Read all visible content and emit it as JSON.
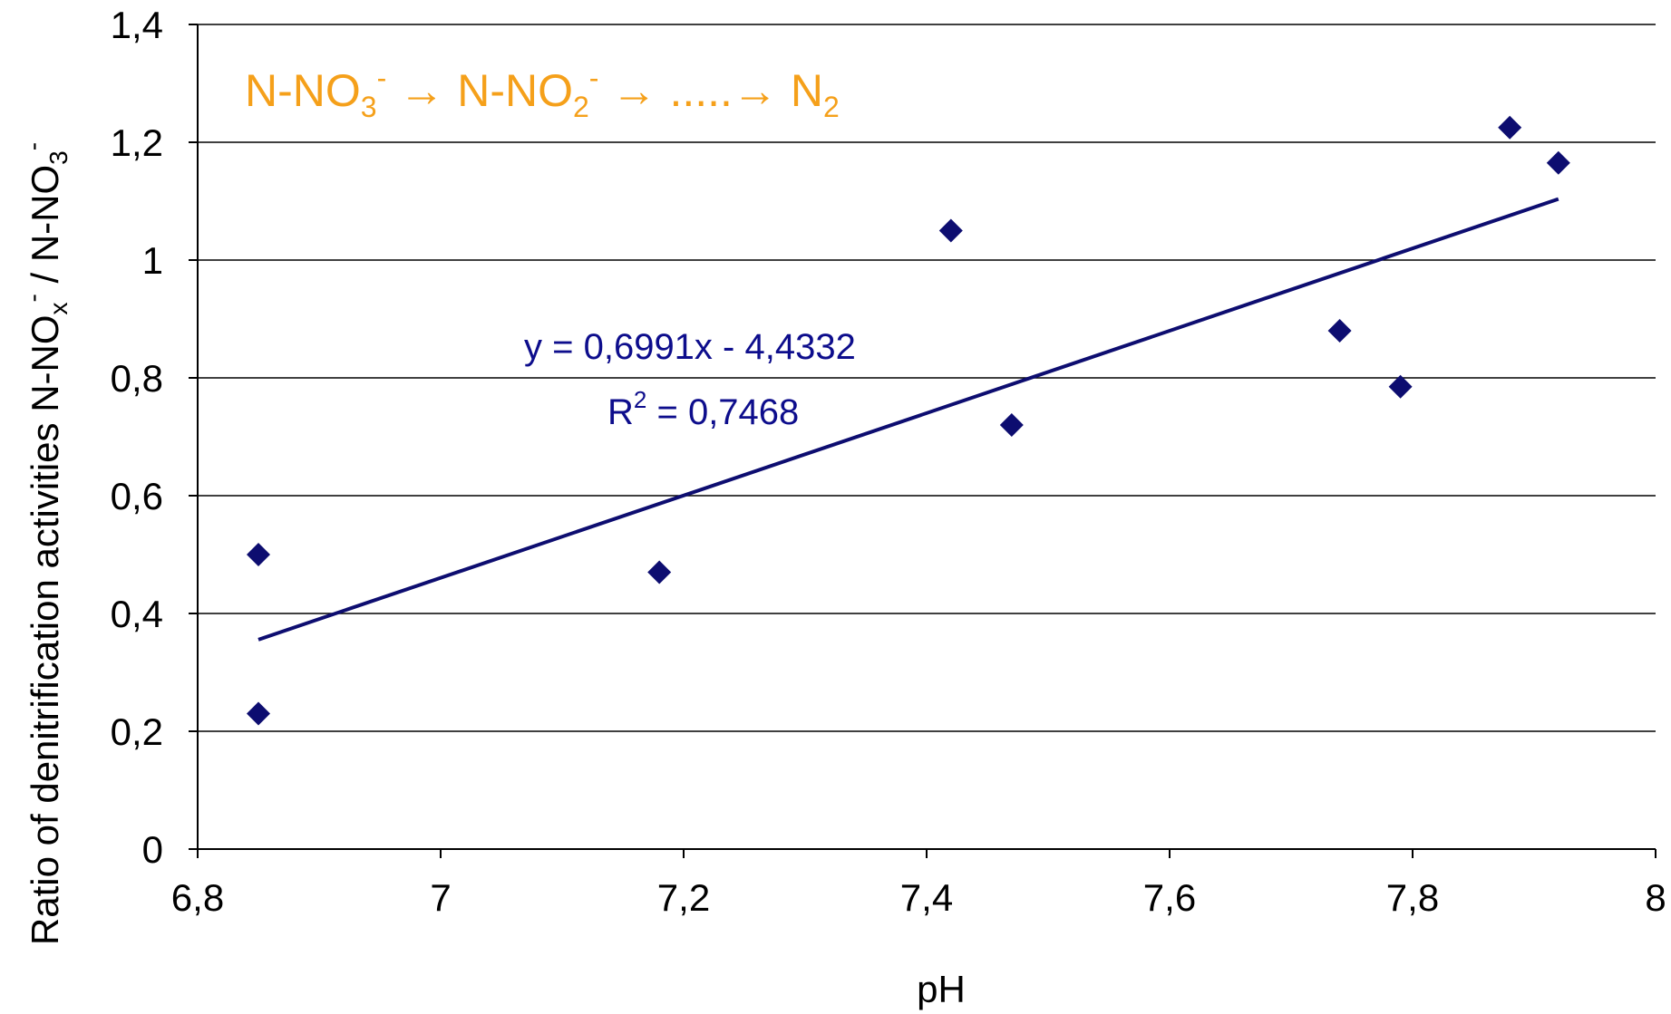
{
  "colors": {
    "marker": "#0d0d70",
    "trendline": "#0d0d70",
    "equation_text": "#0d0d8c",
    "annotation": "#f5a01a",
    "gridline": "#000000",
    "axis": "#000000"
  },
  "annotation": {
    "nno3": "N-NO",
    "nno3_sub": "3",
    "nno3_sup": "-",
    "arrow1": "→",
    "nno2": "N-NO",
    "nno2_sub": "2",
    "nno2_sup": "-",
    "arrow2": "→",
    "dots": ".....",
    "arrow3": "→",
    "n2": "N",
    "n2_sub": "2"
  },
  "trend_equation": "y = 0,6991x - 4,4332",
  "r_squared": {
    "label": "R",
    "sup": "2",
    "value": " = 0,7468"
  },
  "chart_data": {
    "type": "scatter",
    "xlabel": "pH",
    "ylabel": {
      "part1": "Ratio of denitrification activities N-NO",
      "part1_sub": "x",
      "part1_sup": "-",
      "part2": " / N-NO",
      "part2_sub": "3",
      "part2_sup": "-"
    },
    "xlim": [
      6.8,
      8
    ],
    "ylim": [
      0,
      1.4
    ],
    "x_ticks": [
      6.8,
      7,
      7.2,
      7.4,
      7.6,
      7.8,
      8
    ],
    "x_tick_labels": [
      "6,8",
      "7",
      "7,2",
      "7,4",
      "7,6",
      "7,8",
      "8"
    ],
    "y_ticks": [
      0,
      0.2,
      0.4,
      0.6,
      0.8,
      1,
      1.2,
      1.4
    ],
    "y_tick_labels": [
      "0",
      "0,2",
      "0,4",
      "0,6",
      "0,8",
      "1",
      "1,2",
      "1,4"
    ],
    "grid": "horizontal",
    "points": [
      {
        "x": 6.85,
        "y": 0.5
      },
      {
        "x": 6.85,
        "y": 0.23
      },
      {
        "x": 7.18,
        "y": 0.47
      },
      {
        "x": 7.42,
        "y": 1.05
      },
      {
        "x": 7.47,
        "y": 0.72
      },
      {
        "x": 7.74,
        "y": 0.88
      },
      {
        "x": 7.79,
        "y": 0.785
      },
      {
        "x": 7.88,
        "y": 1.225
      },
      {
        "x": 7.92,
        "y": 1.165
      }
    ],
    "trendline": {
      "slope": 0.6991,
      "intercept": -4.4332,
      "x_range": [
        6.85,
        7.92
      ]
    }
  }
}
